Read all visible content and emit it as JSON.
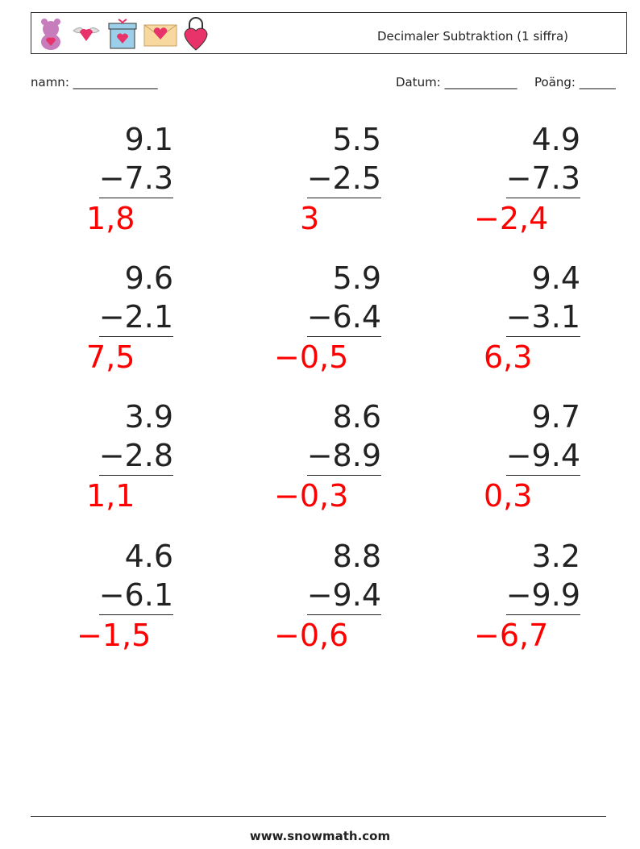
{
  "header": {
    "title": "Decimaler Subtraktion (1 siffra)"
  },
  "fields": {
    "name": "namn: ______________",
    "date": "Datum: ____________",
    "score": "Poäng: ______"
  },
  "problems": [
    {
      "top": "9.1",
      "bottom": "−7.3",
      "answer": "1,8"
    },
    {
      "top": "5.5",
      "bottom": "−2.5",
      "answer": "3"
    },
    {
      "top": "4.9",
      "bottom": "−7.3",
      "answer": "−2,4"
    },
    {
      "top": "9.6",
      "bottom": "−2.1",
      "answer": "7,5"
    },
    {
      "top": "5.9",
      "bottom": "−6.4",
      "answer": "−0,5"
    },
    {
      "top": "9.4",
      "bottom": "−3.1",
      "answer": "6,3"
    },
    {
      "top": "3.9",
      "bottom": "−2.8",
      "answer": "1,1"
    },
    {
      "top": "8.6",
      "bottom": "−8.9",
      "answer": "−0,3"
    },
    {
      "top": "9.7",
      "bottom": "−9.4",
      "answer": "0,3"
    },
    {
      "top": "4.6",
      "bottom": "−6.1",
      "answer": "−1,5"
    },
    {
      "top": "8.8",
      "bottom": "−9.4",
      "answer": "−0,6"
    },
    {
      "top": "3.2",
      "bottom": "−9.9",
      "answer": "−6,7"
    }
  ],
  "footer": "www.snowmath.com"
}
